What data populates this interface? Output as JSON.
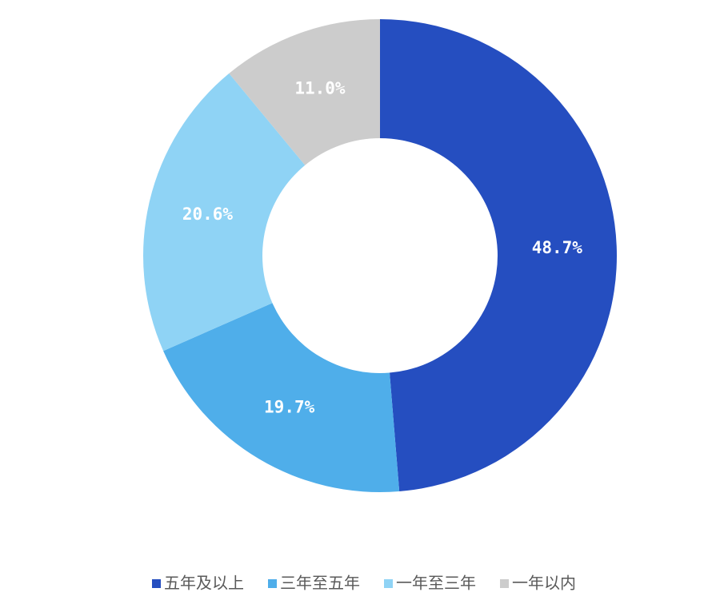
{
  "chart_data": {
    "type": "donut",
    "categories": [
      "五年及以上",
      "三年至五年",
      "一年至三年",
      "一年以内"
    ],
    "values": [
      48.7,
      19.7,
      20.6,
      11.0
    ],
    "value_labels": [
      "48.7%",
      "19.7%",
      "20.6%",
      "11.0%"
    ],
    "colors": [
      "#254ec0",
      "#4faeea",
      "#8fd3f5",
      "#cccccc"
    ]
  }
}
